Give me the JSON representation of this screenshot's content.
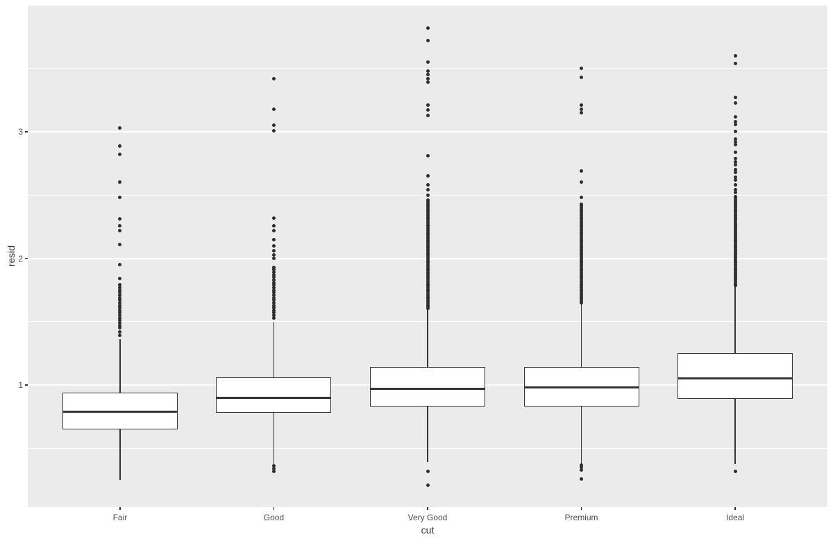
{
  "chart_data": {
    "type": "boxplot",
    "title": "",
    "xlabel": "cut",
    "ylabel": "resid",
    "categories": [
      "Fair",
      "Good",
      "Very Good",
      "Premium",
      "Ideal"
    ],
    "y_axis": {
      "ticks": [
        1,
        2,
        3
      ],
      "tick_labels": [
        "1",
        "2",
        "3"
      ],
      "minor_ticks": [
        0.5,
        1.5,
        2.5,
        3.5
      ],
      "range": [
        0.036,
        3.997
      ],
      "grid": true
    },
    "series": [
      {
        "name": "Fair",
        "q1": 0.65,
        "median": 0.79,
        "q3": 0.94,
        "whisker_low": 0.25,
        "whisker_high": 1.36,
        "outliers_low": [],
        "outliers_high": [
          3.03,
          2.89,
          2.82,
          2.6,
          2.48,
          2.31,
          2.26,
          2.22,
          2.11,
          1.95,
          1.84,
          1.79,
          1.77,
          1.75,
          1.73,
          1.71,
          1.69,
          1.67,
          1.65,
          1.63,
          1.61,
          1.59,
          1.57,
          1.55,
          1.53,
          1.51,
          1.49,
          1.47,
          1.45,
          1.42,
          1.39
        ]
      },
      {
        "name": "Good",
        "q1": 0.78,
        "median": 0.9,
        "q3": 1.06,
        "whisker_low": 0.37,
        "whisker_high": 1.5,
        "outliers_low": [
          0.36,
          0.34,
          0.32
        ],
        "outliers_high": [
          3.42,
          3.18,
          3.05,
          3.01,
          2.32,
          2.26,
          2.22,
          2.15,
          2.1,
          2.06,
          2.03,
          2.0,
          1.93,
          1.91,
          1.89,
          1.87,
          1.85,
          1.83,
          1.81,
          1.79,
          1.77,
          1.75,
          1.73,
          1.71,
          1.69,
          1.67,
          1.65,
          1.63,
          1.61,
          1.59,
          1.57,
          1.55,
          1.53
        ]
      },
      {
        "name": "Very Good",
        "q1": 0.83,
        "median": 0.97,
        "q3": 1.14,
        "whisker_low": 0.39,
        "whisker_high": 1.6,
        "outliers_low": [
          0.32,
          0.21
        ],
        "outliers_high": [
          3.82,
          3.72,
          3.55,
          3.48,
          3.45,
          3.42,
          3.39,
          3.21,
          3.17,
          3.13,
          2.81,
          2.65,
          2.58,
          2.54,
          2.5,
          2.46,
          2.445,
          2.43,
          2.415,
          2.4,
          2.385,
          2.37,
          2.355,
          2.34,
          2.325,
          2.31,
          2.295,
          2.28,
          2.265,
          2.25,
          2.235,
          2.22,
          2.205,
          2.19,
          2.175,
          2.16,
          2.145,
          2.13,
          2.115,
          2.1,
          2.085,
          2.07,
          2.055,
          2.04,
          2.025,
          2.01,
          1.995,
          1.98,
          1.965,
          1.95,
          1.935,
          1.92,
          1.905,
          1.89,
          1.875,
          1.86,
          1.845,
          1.83,
          1.815,
          1.8,
          1.785,
          1.77,
          1.755,
          1.74,
          1.725,
          1.71,
          1.695,
          1.68,
          1.665,
          1.65,
          1.635,
          1.62,
          1.605
        ]
      },
      {
        "name": "Premium",
        "q1": 0.83,
        "median": 0.98,
        "q3": 1.14,
        "whisker_low": 0.38,
        "whisker_high": 1.64,
        "outliers_low": [
          0.37,
          0.35,
          0.33,
          0.26
        ],
        "outliers_high": [
          3.5,
          3.43,
          3.21,
          3.18,
          3.15,
          2.69,
          2.6,
          2.48,
          2.43,
          2.415,
          2.4,
          2.385,
          2.37,
          2.355,
          2.34,
          2.325,
          2.31,
          2.295,
          2.28,
          2.265,
          2.25,
          2.235,
          2.22,
          2.205,
          2.19,
          2.175,
          2.16,
          2.145,
          2.13,
          2.115,
          2.1,
          2.085,
          2.07,
          2.055,
          2.04,
          2.025,
          2.01,
          1.995,
          1.98,
          1.965,
          1.95,
          1.935,
          1.92,
          1.905,
          1.89,
          1.875,
          1.86,
          1.845,
          1.83,
          1.815,
          1.8,
          1.785,
          1.77,
          1.755,
          1.74,
          1.725,
          1.71,
          1.695,
          1.68,
          1.665,
          1.65
        ]
      },
      {
        "name": "Ideal",
        "q1": 0.89,
        "median": 1.05,
        "q3": 1.25,
        "whisker_low": 0.375,
        "whisker_high": 1.78,
        "outliers_low": [
          0.32
        ],
        "outliers_high": [
          3.6,
          3.54,
          3.27,
          3.23,
          3.12,
          3.08,
          3.06,
          3.0,
          2.94,
          2.92,
          2.9,
          2.84,
          2.79,
          2.76,
          2.74,
          2.7,
          2.68,
          2.64,
          2.62,
          2.58,
          2.54,
          2.52,
          2.49,
          2.475,
          2.46,
          2.445,
          2.43,
          2.415,
          2.4,
          2.385,
          2.37,
          2.355,
          2.34,
          2.325,
          2.31,
          2.295,
          2.28,
          2.265,
          2.25,
          2.235,
          2.22,
          2.205,
          2.19,
          2.175,
          2.16,
          2.145,
          2.13,
          2.115,
          2.1,
          2.085,
          2.07,
          2.055,
          2.04,
          2.025,
          2.01,
          1.995,
          1.98,
          1.965,
          1.95,
          1.935,
          1.92,
          1.905,
          1.89,
          1.875,
          1.86,
          1.845,
          1.83,
          1.815,
          1.8,
          1.785
        ]
      }
    ],
    "style": {
      "panel_bg": "#EBEBEB",
      "grid_color": "#FFFFFF",
      "box_fill": "#FFFFFF",
      "box_border": "#333333",
      "outlier_color": "#2E2E2E",
      "tick_label_color": "#4D4D4D",
      "axis_title_color": "#333333"
    },
    "legend": "none"
  }
}
